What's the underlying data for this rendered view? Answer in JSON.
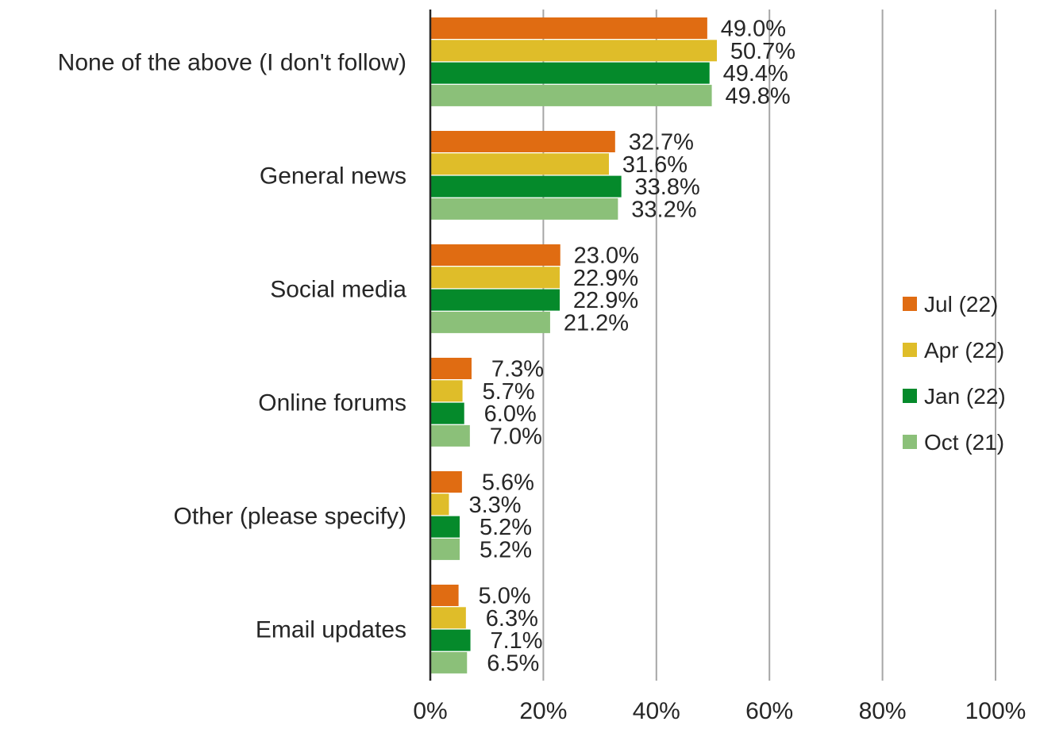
{
  "chart_data": {
    "type": "bar",
    "orientation": "horizontal",
    "title": "",
    "xlabel": "",
    "ylabel": "",
    "xlim": [
      0,
      100
    ],
    "x_ticks": [
      "0%",
      "20%",
      "40%",
      "60%",
      "80%",
      "100%"
    ],
    "grid": true,
    "legend_position": "right",
    "categories": [
      "None of the above (I don't follow)",
      "General news",
      "Social media",
      "Online forums",
      "Other (please specify)",
      "Email updates"
    ],
    "series": [
      {
        "name": "Jul (22)",
        "color": "#e06c12",
        "values": [
          49.0,
          32.7,
          23.0,
          7.3,
          5.6,
          5.0
        ],
        "labels": [
          "49.0%",
          "32.7%",
          "23.0%",
          "7.3%",
          "5.6%",
          "5.0%"
        ]
      },
      {
        "name": "Apr (22)",
        "color": "#dfbd29",
        "values": [
          50.7,
          31.6,
          22.9,
          5.7,
          3.3,
          6.3
        ],
        "labels": [
          "50.7%",
          "31.6%",
          "22.9%",
          "5.7%",
          "3.3%",
          "6.3%"
        ]
      },
      {
        "name": "Jan (22)",
        "color": "#058a2b",
        "values": [
          49.4,
          33.8,
          22.9,
          6.0,
          5.2,
          7.1
        ],
        "labels": [
          "49.4%",
          "33.8%",
          "22.9%",
          "6.0%",
          "5.2%",
          "7.1%"
        ]
      },
      {
        "name": "Oct (21)",
        "color": "#8bc079",
        "values": [
          49.8,
          33.2,
          21.2,
          7.0,
          5.2,
          6.5
        ],
        "labels": [
          "49.8%",
          "33.2%",
          "21.2%",
          "7.0%",
          "5.2%",
          "6.5%"
        ]
      }
    ],
    "colors": {
      "gridline": "#a6a6a6",
      "axis": "#262626",
      "text": "#262626"
    }
  }
}
